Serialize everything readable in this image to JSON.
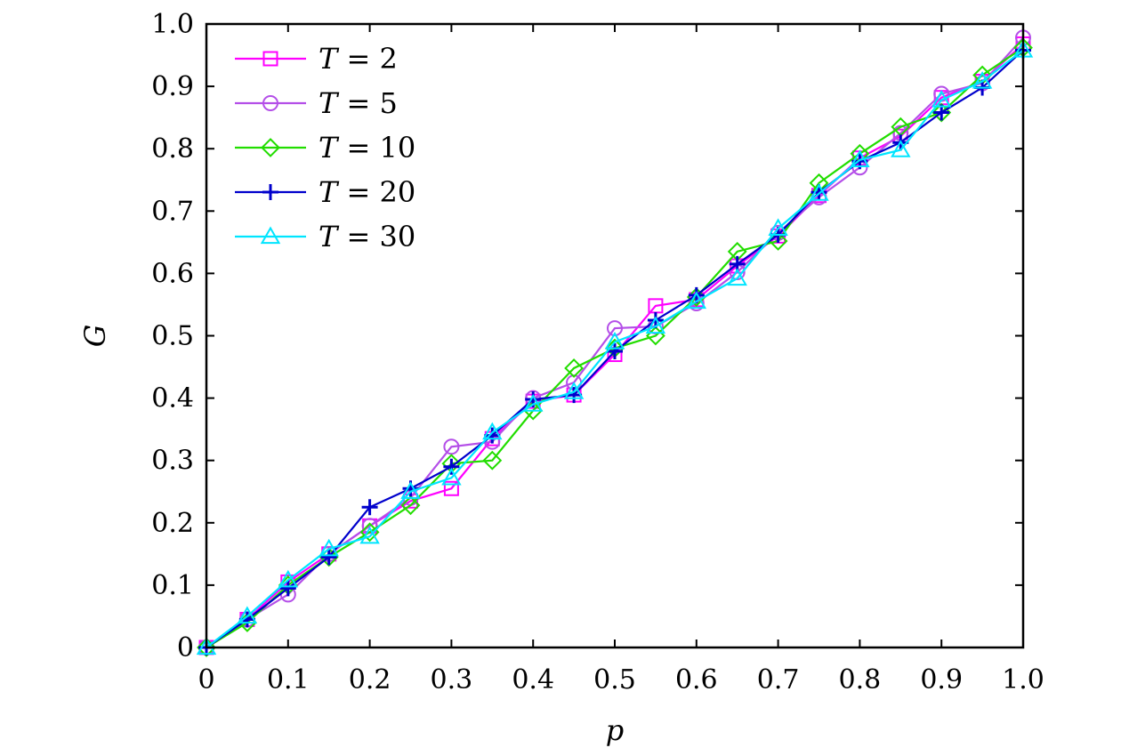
{
  "chart_data": {
    "type": "line",
    "title": "",
    "xlabel": "p",
    "ylabel": "G",
    "xlim": [
      0,
      1
    ],
    "ylim": [
      0,
      1
    ],
    "grid": false,
    "legend_position": "top-left",
    "x": [
      0,
      0.05,
      0.1,
      0.15,
      0.2,
      0.25,
      0.3,
      0.35,
      0.4,
      0.45,
      0.5,
      0.55,
      0.6,
      0.65,
      0.7,
      0.75,
      0.8,
      0.85,
      0.9,
      0.95,
      1.0
    ],
    "x_ticks": [
      "0",
      "0.1",
      "0.2",
      "0.3",
      "0.4",
      "0.5",
      "0.6",
      "0.7",
      "0.8",
      "0.9",
      "1.0"
    ],
    "y_ticks": [
      "0",
      "0.1",
      "0.2",
      "0.3",
      "0.4",
      "0.5",
      "0.6",
      "0.7",
      "0.8",
      "0.9",
      "1.0"
    ],
    "series": [
      {
        "name": "T = 2",
        "label_var": "T",
        "label_value": "2",
        "marker": "square",
        "color": "#ff00ff",
        "values": [
          0,
          0.045,
          0.105,
          0.15,
          0.195,
          0.235,
          0.255,
          0.335,
          0.395,
          0.405,
          0.47,
          0.548,
          0.558,
          0.612,
          0.66,
          0.725,
          0.785,
          0.82,
          0.882,
          0.908,
          0.968
        ]
      },
      {
        "name": "T = 5",
        "label_var": "T",
        "label_value": "5",
        "marker": "circle",
        "color": "#b44fe8",
        "values": [
          0,
          0.045,
          0.085,
          0.15,
          0.195,
          0.24,
          0.322,
          0.33,
          0.4,
          0.425,
          0.512,
          0.515,
          0.552,
          0.602,
          0.665,
          0.722,
          0.77,
          0.825,
          0.888,
          0.905,
          0.978
        ]
      },
      {
        "name": "T = 10",
        "label_var": "T",
        "label_value": "10",
        "marker": "diamond",
        "color": "#22dd00",
        "values": [
          0,
          0.04,
          0.1,
          0.145,
          0.185,
          0.228,
          0.295,
          0.3,
          0.38,
          0.448,
          0.48,
          0.5,
          0.562,
          0.635,
          0.652,
          0.745,
          0.792,
          0.835,
          0.858,
          0.918,
          0.962
        ]
      },
      {
        "name": "T = 20",
        "label_var": "T",
        "label_value": "20",
        "marker": "plus",
        "color": "#0000cc",
        "values": [
          0,
          0.045,
          0.095,
          0.145,
          0.225,
          0.255,
          0.29,
          0.34,
          0.398,
          0.405,
          0.475,
          0.525,
          0.565,
          0.615,
          0.662,
          0.73,
          0.78,
          0.81,
          0.858,
          0.898,
          0.958
        ]
      },
      {
        "name": "T = 30",
        "label_var": "T",
        "label_value": "30",
        "marker": "triangle",
        "color": "#00e5ff",
        "values": [
          0,
          0.05,
          0.108,
          0.158,
          0.178,
          0.25,
          0.272,
          0.345,
          0.39,
          0.41,
          0.49,
          0.515,
          0.555,
          0.592,
          0.672,
          0.728,
          0.782,
          0.798,
          0.878,
          0.908,
          0.958
        ]
      }
    ]
  }
}
